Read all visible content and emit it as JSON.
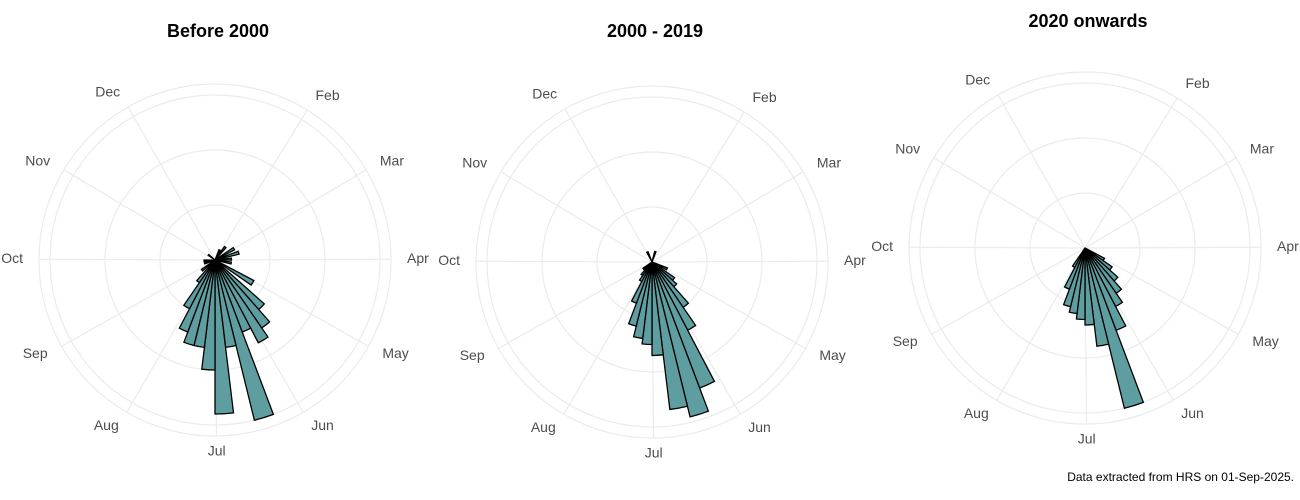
{
  "chart_data": [
    {
      "type": "polar_bar",
      "title": "Before 2000",
      "x": [
        25,
        39,
        60,
        74,
        88,
        102,
        123,
        137,
        144,
        151,
        158,
        165,
        172,
        179,
        186,
        193,
        200,
        207,
        214,
        221,
        235,
        256,
        270,
        312
      ],
      "values": [
        2,
        3,
        4,
        4.5,
        3,
        3,
        8,
        12,
        15,
        17,
        14,
        30,
        16,
        28,
        20,
        16,
        16,
        14,
        10,
        5,
        3,
        2,
        2,
        1.5
      ],
      "color": "#5f9ea0",
      "xlim": [
        0,
        365
      ],
      "xticks": [
        {
          "value": 32,
          "label": "Feb"
        },
        {
          "value": 60,
          "label": "Mar"
        },
        {
          "value": 91,
          "label": "Apr"
        },
        {
          "value": 121,
          "label": "May"
        },
        {
          "value": 152,
          "label": "Jun"
        },
        {
          "value": 182,
          "label": "Jul"
        },
        {
          "value": 213,
          "label": "Aug"
        },
        {
          "value": 244,
          "label": "Sep"
        },
        {
          "value": 274,
          "label": "Oct"
        },
        {
          "value": 305,
          "label": "Nov"
        },
        {
          "value": 335,
          "label": "Dec"
        }
      ],
      "ylim": [
        0,
        32
      ],
      "yticks": [
        10,
        20,
        30
      ]
    },
    {
      "type": "polar_bar",
      "title": "2000 - 2019",
      "x": [
        18,
        116,
        130,
        137,
        144,
        151,
        158,
        165,
        172,
        179,
        186,
        193,
        200,
        207,
        214,
        221,
        235,
        340
      ],
      "values": [
        2,
        3,
        5,
        6,
        10,
        14,
        24.5,
        29,
        27,
        17,
        15,
        14,
        12,
        8,
        4,
        3,
        2,
        2
      ],
      "color": "#5f9ea0",
      "xlim": [
        0,
        365
      ],
      "xticks": [
        {
          "value": 32,
          "label": "Feb"
        },
        {
          "value": 60,
          "label": "Mar"
        },
        {
          "value": 91,
          "label": "Apr"
        },
        {
          "value": 121,
          "label": "May"
        },
        {
          "value": 152,
          "label": "Jun"
        },
        {
          "value": 182,
          "label": "Jul"
        },
        {
          "value": 213,
          "label": "Aug"
        },
        {
          "value": 244,
          "label": "Sep"
        },
        {
          "value": 274,
          "label": "Oct"
        },
        {
          "value": 305,
          "label": "Nov"
        },
        {
          "value": 335,
          "label": "Dec"
        }
      ],
      "ylim": [
        0,
        32
      ],
      "yticks": [
        10,
        20,
        30
      ]
    },
    {
      "type": "polar_bar",
      "title": "2020 onwards",
      "x": [
        123,
        130,
        137,
        144,
        151,
        158,
        165,
        172,
        179,
        186,
        193,
        200,
        207,
        214
      ],
      "values": [
        4,
        6,
        8,
        10,
        12,
        16,
        30,
        18,
        14,
        13,
        12,
        11,
        8,
        4
      ],
      "color": "#5f9ea0",
      "xlim": [
        0,
        365
      ],
      "xticks": [
        {
          "value": 32,
          "label": "Feb"
        },
        {
          "value": 60,
          "label": "Mar"
        },
        {
          "value": 91,
          "label": "Apr"
        },
        {
          "value": 121,
          "label": "May"
        },
        {
          "value": 152,
          "label": "Jun"
        },
        {
          "value": 182,
          "label": "Jul"
        },
        {
          "value": 213,
          "label": "Aug"
        },
        {
          "value": 244,
          "label": "Sep"
        },
        {
          "value": 274,
          "label": "Oct"
        },
        {
          "value": 305,
          "label": "Nov"
        },
        {
          "value": 335,
          "label": "Dec"
        }
      ],
      "ylim": [
        0,
        32
      ],
      "yticks": [
        10,
        20,
        30
      ]
    }
  ],
  "caption": "Data extracted from HRS on 01-Sep-2025."
}
